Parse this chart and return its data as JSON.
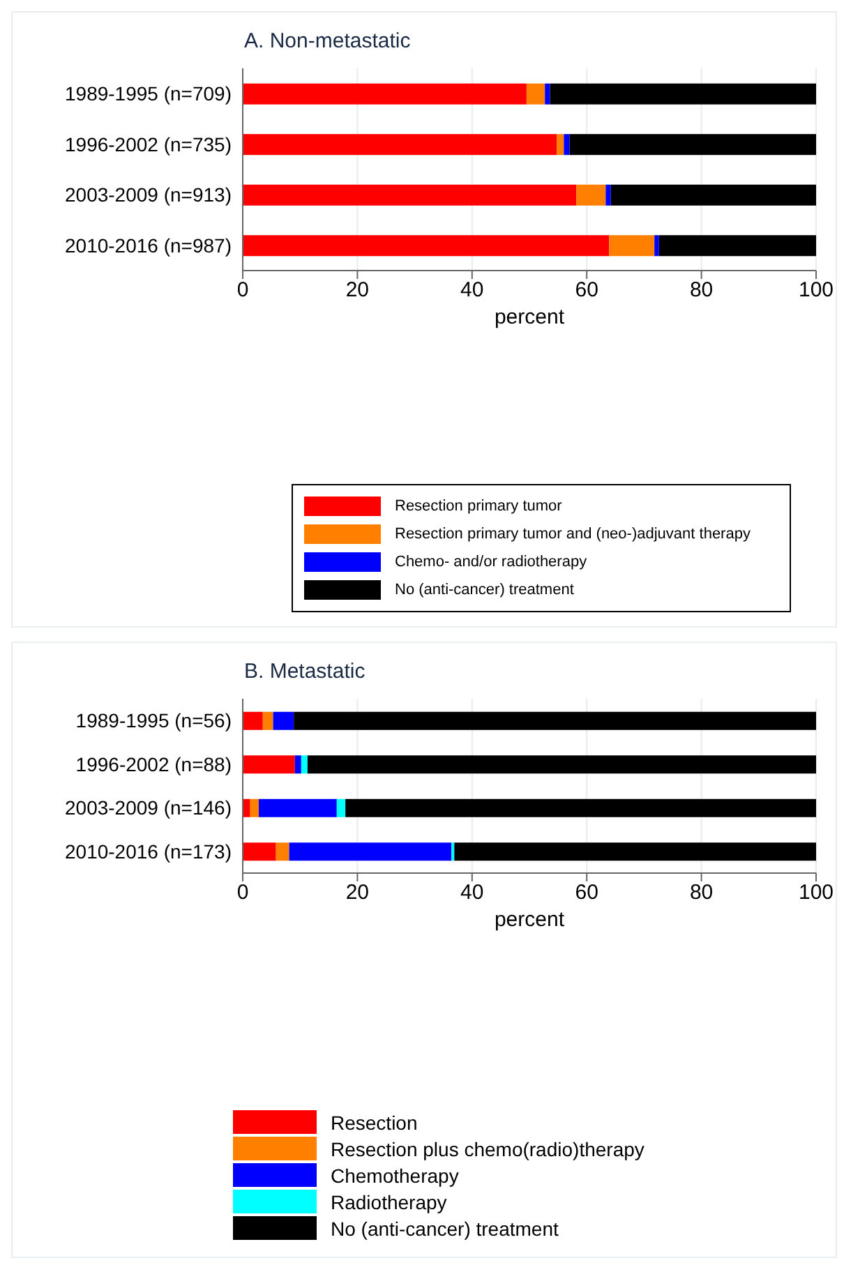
{
  "chart_data": [
    {
      "type": "bar",
      "orientation": "horizontal",
      "stacked": true,
      "title": "A. Non-metastatic",
      "xlabel": "percent",
      "categories": [
        "1989-1995 (n=709)",
        "1996-2002 (n=735)",
        "2003-2009 (n=913)",
        "2010-2016 (n=987)"
      ],
      "series": [
        {
          "name": "Resection primary tumor",
          "color": "#ff0000",
          "values": [
            49.5,
            54.8,
            58.2,
            63.9
          ]
        },
        {
          "name": "Resection primary tumor and (neo-)adjuvant therapy",
          "color": "#ff7f00",
          "values": [
            3.2,
            1.2,
            5.1,
            7.9
          ]
        },
        {
          "name": "Chemo- and/or radiotherapy",
          "color": "#0000ff",
          "values": [
            0.9,
            1.0,
            0.9,
            0.8
          ]
        },
        {
          "name": "No (anti-cancer) treatment",
          "color": "#000000",
          "values": [
            46.4,
            43.0,
            35.8,
            27.4
          ]
        }
      ],
      "xlim": [
        0,
        100
      ],
      "xticks": [
        0,
        20,
        40,
        60,
        80,
        100
      ],
      "grid": "x",
      "legend": "bottom"
    },
    {
      "type": "bar",
      "orientation": "horizontal",
      "stacked": true,
      "title": "B. Metastatic",
      "xlabel": "percent",
      "categories": [
        "1989-1995 (n=56)",
        "1996-2002 (n=88)",
        "2003-2009 (n=146)",
        "2010-2016 (n=173)"
      ],
      "series": [
        {
          "name": "Resection",
          "color": "#ff0000",
          "values": [
            3.5,
            9.1,
            1.3,
            5.8
          ]
        },
        {
          "name": "Resection plus chemo(radio)therapy",
          "color": "#ff7f00",
          "values": [
            1.8,
            0,
            1.5,
            2.3
          ]
        },
        {
          "name": "Chemotherapy",
          "color": "#0000ff",
          "values": [
            3.6,
            1.1,
            13.6,
            28.3
          ]
        },
        {
          "name": "Radiotherapy",
          "color": "#00ffff",
          "values": [
            0,
            1.1,
            1.5,
            0.5
          ]
        },
        {
          "name": "No (anti-cancer) treatment",
          "color": "#000000",
          "values": [
            91.1,
            88.7,
            82.1,
            63.1
          ]
        }
      ],
      "xlim": [
        0,
        100
      ],
      "xticks": [
        0,
        20,
        40,
        60,
        80,
        100
      ],
      "grid": "x",
      "legend": "bottom"
    }
  ]
}
